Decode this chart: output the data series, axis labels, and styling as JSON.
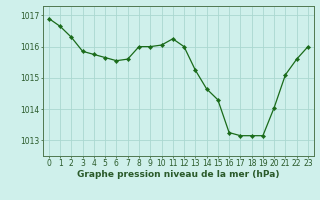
{
  "x": [
    0,
    1,
    2,
    3,
    4,
    5,
    6,
    7,
    8,
    9,
    10,
    11,
    12,
    13,
    14,
    15,
    16,
    17,
    18,
    19,
    20,
    21,
    22,
    23
  ],
  "y": [
    1016.9,
    1016.65,
    1016.3,
    1015.85,
    1015.75,
    1015.65,
    1015.55,
    1015.6,
    1016.0,
    1016.0,
    1016.05,
    1016.25,
    1016.0,
    1015.25,
    1014.65,
    1014.3,
    1013.25,
    1013.15,
    1013.15,
    1013.15,
    1014.05,
    1015.1,
    1015.6,
    1016.0
  ],
  "line_color": "#1a6b1a",
  "marker": "D",
  "marker_size": 2.2,
  "bg_color": "#cff0eb",
  "grid_color": "#aad8d0",
  "axis_color": "#507850",
  "xlabel": "Graphe pression niveau de la mer (hPa)",
  "ylim": [
    1012.5,
    1017.3
  ],
  "xlim": [
    -0.5,
    23.5
  ],
  "yticks": [
    1013,
    1014,
    1015,
    1016,
    1017
  ],
  "xticks": [
    0,
    1,
    2,
    3,
    4,
    5,
    6,
    7,
    8,
    9,
    10,
    11,
    12,
    13,
    14,
    15,
    16,
    17,
    18,
    19,
    20,
    21,
    22,
    23
  ],
  "xlabel_fontsize": 6.5,
  "tick_fontsize": 5.5,
  "tick_color": "#2a5a2a"
}
